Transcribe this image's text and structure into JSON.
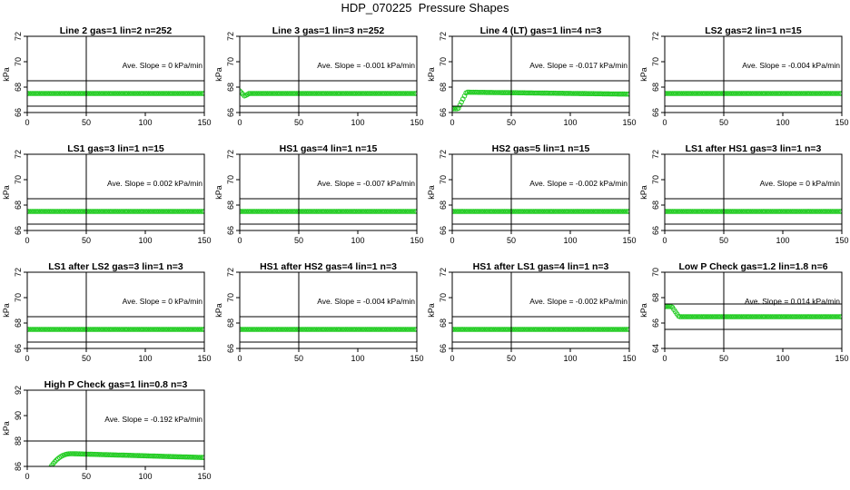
{
  "figure": {
    "title": "HDP_070225  Pressure Shapes",
    "ylabel": "kPa",
    "marker_color": "#22cc22"
  },
  "chart_data": [
    {
      "type": "scatter",
      "title": "Line 2 gas=1 lin=2 n=252",
      "annotation": "Ave. Slope =  0  kPa/min",
      "xlim": [
        0,
        150
      ],
      "ylim": [
        66,
        72
      ],
      "xticks": [
        0,
        50,
        100,
        150
      ],
      "yticks": [
        66,
        68,
        70,
        72
      ],
      "vline": 50,
      "hlines": [
        68.5,
        66.5
      ],
      "shape": "flat",
      "level": 67.5
    },
    {
      "type": "scatter",
      "title": "Line 3 gas=1 lin=3 n=252",
      "annotation": "Ave. Slope =  -0.001  kPa/min",
      "xlim": [
        0,
        150
      ],
      "ylim": [
        66,
        72
      ],
      "xticks": [
        0,
        50,
        100,
        150
      ],
      "yticks": [
        66,
        68,
        70,
        72
      ],
      "vline": 50,
      "hlines": [
        68.5,
        66.5
      ],
      "shape": "dip",
      "level": 67.5,
      "start": 67.7,
      "low": 67.3
    },
    {
      "type": "scatter",
      "title": "Line 4 (LT) gas=1 lin=4 n=3",
      "annotation": "Ave. Slope =  -0.017  kPa/min",
      "xlim": [
        0,
        150
      ],
      "ylim": [
        66,
        72
      ],
      "xticks": [
        0,
        50,
        100,
        150
      ],
      "yticks": [
        66,
        68,
        70,
        72
      ],
      "vline": 50,
      "hlines": [
        68.5,
        66.5
      ],
      "shape": "rise",
      "level": 67.6,
      "start": 66.3,
      "end": 67.45
    },
    {
      "type": "scatter",
      "title": "LS2 gas=2 lin=1 n=15",
      "annotation": "Ave. Slope =  -0.004  kPa/min",
      "xlim": [
        0,
        150
      ],
      "ylim": [
        66,
        72
      ],
      "xticks": [
        0,
        50,
        100,
        150
      ],
      "yticks": [
        66,
        68,
        70,
        72
      ],
      "vline": 50,
      "hlines": [
        68.5,
        66.5
      ],
      "shape": "flat",
      "level": 67.5
    },
    {
      "type": "scatter",
      "title": "LS1 gas=3 lin=1 n=15",
      "annotation": "Ave. Slope =  0.002  kPa/min",
      "xlim": [
        0,
        150
      ],
      "ylim": [
        66,
        72
      ],
      "xticks": [
        0,
        50,
        100,
        150
      ],
      "yticks": [
        66,
        68,
        70,
        72
      ],
      "vline": 50,
      "hlines": [
        68.5,
        66.5
      ],
      "shape": "flat",
      "level": 67.5
    },
    {
      "type": "scatter",
      "title": "HS1 gas=4 lin=1 n=15",
      "annotation": "Ave. Slope =  -0.007  kPa/min",
      "xlim": [
        0,
        150
      ],
      "ylim": [
        66,
        72
      ],
      "xticks": [
        0,
        50,
        100,
        150
      ],
      "yticks": [
        66,
        68,
        70,
        72
      ],
      "vline": 50,
      "hlines": [
        68.5,
        66.5
      ],
      "shape": "flat",
      "level": 67.5
    },
    {
      "type": "scatter",
      "title": "HS2 gas=5 lin=1 n=15",
      "annotation": "Ave. Slope =  -0.002  kPa/min",
      "xlim": [
        0,
        150
      ],
      "ylim": [
        66,
        72
      ],
      "xticks": [
        0,
        50,
        100,
        150
      ],
      "yticks": [
        66,
        68,
        70,
        72
      ],
      "vline": 50,
      "hlines": [
        68.5,
        66.5
      ],
      "shape": "flat",
      "level": 67.5
    },
    {
      "type": "scatter",
      "title": "LS1 after HS1 gas=3 lin=1 n=3",
      "annotation": "Ave. Slope =  0  kPa/min",
      "xlim": [
        0,
        150
      ],
      "ylim": [
        66,
        72
      ],
      "xticks": [
        0,
        50,
        100,
        150
      ],
      "yticks": [
        66,
        68,
        70,
        72
      ],
      "vline": 50,
      "hlines": [
        68.5,
        66.5
      ],
      "shape": "flat",
      "level": 67.5
    },
    {
      "type": "scatter",
      "title": "LS1 after LS2 gas=3 lin=1 n=3",
      "annotation": "Ave. Slope =  0  kPa/min",
      "xlim": [
        0,
        150
      ],
      "ylim": [
        66,
        72
      ],
      "xticks": [
        0,
        50,
        100,
        150
      ],
      "yticks": [
        66,
        68,
        70,
        72
      ],
      "vline": 50,
      "hlines": [
        68.5,
        66.5
      ],
      "shape": "flat",
      "level": 67.5
    },
    {
      "type": "scatter",
      "title": "HS1 after HS2 gas=4 lin=1 n=3",
      "annotation": "Ave. Slope =  -0.004  kPa/min",
      "xlim": [
        0,
        150
      ],
      "ylim": [
        66,
        72
      ],
      "xticks": [
        0,
        50,
        100,
        150
      ],
      "yticks": [
        66,
        68,
        70,
        72
      ],
      "vline": 50,
      "hlines": [
        68.5,
        66.5
      ],
      "shape": "flat",
      "level": 67.5
    },
    {
      "type": "scatter",
      "title": "HS1 after LS1 gas=4 lin=1 n=3",
      "annotation": "Ave. Slope =  -0.002  kPa/min",
      "xlim": [
        0,
        150
      ],
      "ylim": [
        66,
        72
      ],
      "xticks": [
        0,
        50,
        100,
        150
      ],
      "yticks": [
        66,
        68,
        70,
        72
      ],
      "vline": 50,
      "hlines": [
        68.5,
        66.5
      ],
      "shape": "flat",
      "level": 67.5
    },
    {
      "type": "scatter",
      "title": "Low P Check gas=1.2 lin=1.8 n=6",
      "annotation": "Ave. Slope =  0.014  kPa/min",
      "xlim": [
        0,
        150
      ],
      "ylim": [
        64,
        70
      ],
      "xticks": [
        0,
        50,
        100,
        150
      ],
      "yticks": [
        64,
        66,
        68,
        70
      ],
      "vline": 50,
      "hlines": [
        67.5,
        65.5
      ],
      "shape": "drop",
      "level": 66.5,
      "start": 67.3
    },
    {
      "type": "scatter",
      "title": "High P Check gas=1 lin=0.8 n=3",
      "annotation": "Ave. Slope =  -0.192  kPa/min",
      "xlim": [
        0,
        150
      ],
      "ylim": [
        86,
        92
      ],
      "xticks": [
        0,
        50,
        100,
        150
      ],
      "yticks": [
        86,
        88,
        90,
        92
      ],
      "vline": 50,
      "hlines": [
        88,
        86
      ],
      "shape": "overshoot",
      "level": 87.3,
      "start": 84.5,
      "peak": 87.0,
      "end": 86.7
    }
  ]
}
